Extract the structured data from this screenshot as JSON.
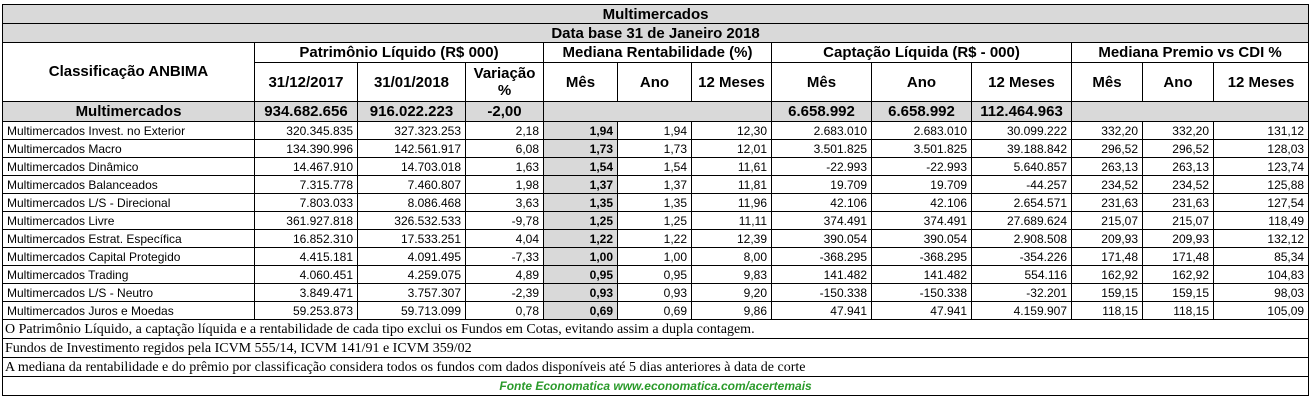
{
  "title": "Multimercados",
  "subtitle": "Data base 31 de Janeiro 2018",
  "header": {
    "classification": "Classificação ANBIMA",
    "groups": {
      "pl": "Patrimônio Líquido (R$ 000)",
      "rent": "Mediana Rentabilidade (%)",
      "capt": "Captação Líquida (R$ - 000)",
      "premio": "Mediana Premio vs CDI %"
    },
    "cols": {
      "pl_1": "31/12/2017",
      "pl_2": "31/01/2018",
      "pl_3": "Variação %",
      "rent_1": "Mês",
      "rent_2": "Ano",
      "rent_3": "12 Meses",
      "capt_1": "Mês",
      "capt_2": "Ano",
      "capt_3": "12 Meses",
      "prem_1": "Mês",
      "prem_2": "Ano",
      "prem_3": "12 Meses"
    }
  },
  "totals": {
    "name": "Multimercados",
    "pl_1": "934.682.656",
    "pl_2": "916.022.223",
    "pl_3": "-2,00",
    "capt_1": "6.658.992",
    "capt_2": "6.658.992",
    "capt_3": "112.464.963"
  },
  "rows": [
    {
      "name": "Multimercados Invest. no Exterior",
      "pl_1": "320.345.835",
      "pl_2": "327.323.253",
      "pl_3": "2,18",
      "rent_1": "1,94",
      "rent_2": "1,94",
      "rent_3": "12,30",
      "capt_1": "2.683.010",
      "capt_2": "2.683.010",
      "capt_3": "30.099.222",
      "prem_1": "332,20",
      "prem_2": "332,20",
      "prem_3": "131,12"
    },
    {
      "name": "Multimercados Macro",
      "pl_1": "134.390.996",
      "pl_2": "142.561.917",
      "pl_3": "6,08",
      "rent_1": "1,73",
      "rent_2": "1,73",
      "rent_3": "12,01",
      "capt_1": "3.501.825",
      "capt_2": "3.501.825",
      "capt_3": "39.188.842",
      "prem_1": "296,52",
      "prem_2": "296,52",
      "prem_3": "128,03"
    },
    {
      "name": "Multimercados Dinâmico",
      "pl_1": "14.467.910",
      "pl_2": "14.703.018",
      "pl_3": "1,63",
      "rent_1": "1,54",
      "rent_2": "1,54",
      "rent_3": "11,61",
      "capt_1": "-22.993",
      "capt_2": "-22.993",
      "capt_3": "5.640.857",
      "prem_1": "263,13",
      "prem_2": "263,13",
      "prem_3": "123,74"
    },
    {
      "name": "Multimercados Balanceados",
      "pl_1": "7.315.778",
      "pl_2": "7.460.807",
      "pl_3": "1,98",
      "rent_1": "1,37",
      "rent_2": "1,37",
      "rent_3": "11,81",
      "capt_1": "19.709",
      "capt_2": "19.709",
      "capt_3": "-44.257",
      "prem_1": "234,52",
      "prem_2": "234,52",
      "prem_3": "125,88"
    },
    {
      "name": "Multimercados L/S - Direcional",
      "pl_1": "7.803.033",
      "pl_2": "8.086.468",
      "pl_3": "3,63",
      "rent_1": "1,35",
      "rent_2": "1,35",
      "rent_3": "11,96",
      "capt_1": "42.106",
      "capt_2": "42.106",
      "capt_3": "2.654.571",
      "prem_1": "231,63",
      "prem_2": "231,63",
      "prem_3": "127,54"
    },
    {
      "name": "Multimercados Livre",
      "pl_1": "361.927.818",
      "pl_2": "326.532.533",
      "pl_3": "-9,78",
      "rent_1": "1,25",
      "rent_2": "1,25",
      "rent_3": "11,11",
      "capt_1": "374.491",
      "capt_2": "374.491",
      "capt_3": "27.689.624",
      "prem_1": "215,07",
      "prem_2": "215,07",
      "prem_3": "118,49"
    },
    {
      "name": "Multimercados Estrat. Específica",
      "pl_1": "16.852.310",
      "pl_2": "17.533.251",
      "pl_3": "4,04",
      "rent_1": "1,22",
      "rent_2": "1,22",
      "rent_3": "12,39",
      "capt_1": "390.054",
      "capt_2": "390.054",
      "capt_3": "2.908.508",
      "prem_1": "209,93",
      "prem_2": "209,93",
      "prem_3": "132,12"
    },
    {
      "name": "Multimercados Capital Protegido",
      "pl_1": "4.415.181",
      "pl_2": "4.091.495",
      "pl_3": "-7,33",
      "rent_1": "1,00",
      "rent_2": "1,00",
      "rent_3": "8,00",
      "capt_1": "-368.295",
      "capt_2": "-368.295",
      "capt_3": "-354.226",
      "prem_1": "171,48",
      "prem_2": "171,48",
      "prem_3": "85,34"
    },
    {
      "name": "Multimercados Trading",
      "pl_1": "4.060.451",
      "pl_2": "4.259.075",
      "pl_3": "4,89",
      "rent_1": "0,95",
      "rent_2": "0,95",
      "rent_3": "9,83",
      "capt_1": "141.482",
      "capt_2": "141.482",
      "capt_3": "554.116",
      "prem_1": "162,92",
      "prem_2": "162,92",
      "prem_3": "104,83"
    },
    {
      "name": "Multimercados L/S - Neutro",
      "pl_1": "3.849.471",
      "pl_2": "3.757.307",
      "pl_3": "-2,39",
      "rent_1": "0,93",
      "rent_2": "0,93",
      "rent_3": "9,20",
      "capt_1": "-150.338",
      "capt_2": "-150.338",
      "capt_3": "-32.201",
      "prem_1": "159,15",
      "prem_2": "159,15",
      "prem_3": "98,03"
    },
    {
      "name": "Multimercados Juros e Moedas",
      "pl_1": "59.253.873",
      "pl_2": "59.713.099",
      "pl_3": "0,78",
      "rent_1": "0,69",
      "rent_2": "0,69",
      "rent_3": "9,86",
      "capt_1": "47.941",
      "capt_2": "47.941",
      "capt_3": "4.159.907",
      "prem_1": "118,15",
      "prem_2": "118,15",
      "prem_3": "105,09"
    }
  ],
  "notes": [
    "O Patrimônio Líquido, a captação líquida e a rentabilidade de cada tipo exclui os Fundos em Cotas, evitando assim a dupla contagem.",
    "Fundos de Investimento regidos pela ICVM 555/14, ICVM 141/91 e ICVM 359/02",
    "A mediana da rentabilidade  e do prêmio por classificação considera todos os fundos com dados disponíveis até 5 dias anteriores à data de corte"
  ],
  "source": "Fonte Economatica www.economatica.com/acertemais",
  "colors": {
    "header_bg": "#d9d9d9",
    "source_text": "#2a9a2a"
  }
}
